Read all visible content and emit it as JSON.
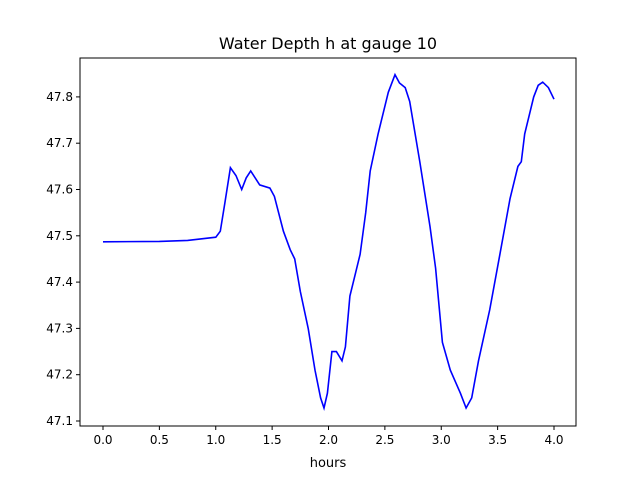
{
  "chart_data": {
    "type": "line",
    "title": "Water Depth h at gauge 10",
    "xlabel": "hours",
    "ylabel": "",
    "xlim": [
      -0.2,
      4.2
    ],
    "ylim": [
      47.09,
      47.88
    ],
    "xticks": [
      0.0,
      0.5,
      1.0,
      1.5,
      2.0,
      2.5,
      3.0,
      3.5,
      4.0
    ],
    "xtick_labels": [
      "0.0",
      "0.5",
      "1.0",
      "1.5",
      "2.0",
      "2.5",
      "3.0",
      "3.5",
      "4.0"
    ],
    "yticks": [
      47.1,
      47.2,
      47.3,
      47.4,
      47.5,
      47.6,
      47.7,
      47.8
    ],
    "ytick_labels": [
      "47.1",
      "47.2",
      "47.3",
      "47.4",
      "47.5",
      "47.6",
      "47.7",
      "47.8"
    ],
    "grid": false,
    "series": [
      {
        "name": "h",
        "color": "#0000ff",
        "x": [
          0,
          0.5,
          0.75,
          1.0,
          1.04,
          1.08,
          1.13,
          1.18,
          1.23,
          1.27,
          1.31,
          1.35,
          1.39,
          1.48,
          1.52,
          1.6,
          1.66,
          1.7,
          1.75,
          1.82,
          1.88,
          1.93,
          1.96,
          1.99,
          2.03,
          2.07,
          2.12,
          2.15,
          2.19,
          2.24,
          2.28,
          2.33,
          2.37,
          2.44,
          2.53,
          2.59,
          2.63,
          2.68,
          2.72,
          2.81,
          2.9,
          2.95,
          3.01,
          3.08,
          3.17,
          3.22,
          3.27,
          3.33,
          3.43,
          3.52,
          3.61,
          3.68,
          3.71,
          3.74,
          3.78,
          3.82,
          3.86,
          3.9,
          3.95,
          4.0
        ],
        "y": [
          47.487,
          47.488,
          47.49,
          47.497,
          47.51,
          47.57,
          47.647,
          47.63,
          47.6,
          47.625,
          47.64,
          47.625,
          47.61,
          47.603,
          47.585,
          47.51,
          47.47,
          47.45,
          47.38,
          47.3,
          47.21,
          47.15,
          47.128,
          47.16,
          47.25,
          47.25,
          47.23,
          47.26,
          47.37,
          47.42,
          47.46,
          47.55,
          47.64,
          47.72,
          47.81,
          47.848,
          47.83,
          47.82,
          47.79,
          47.66,
          47.52,
          47.43,
          47.27,
          47.21,
          47.16,
          47.128,
          47.15,
          47.23,
          47.34,
          47.46,
          47.58,
          47.65,
          47.66,
          47.72,
          47.76,
          47.8,
          47.825,
          47.832,
          47.82,
          47.795
        ]
      }
    ]
  }
}
